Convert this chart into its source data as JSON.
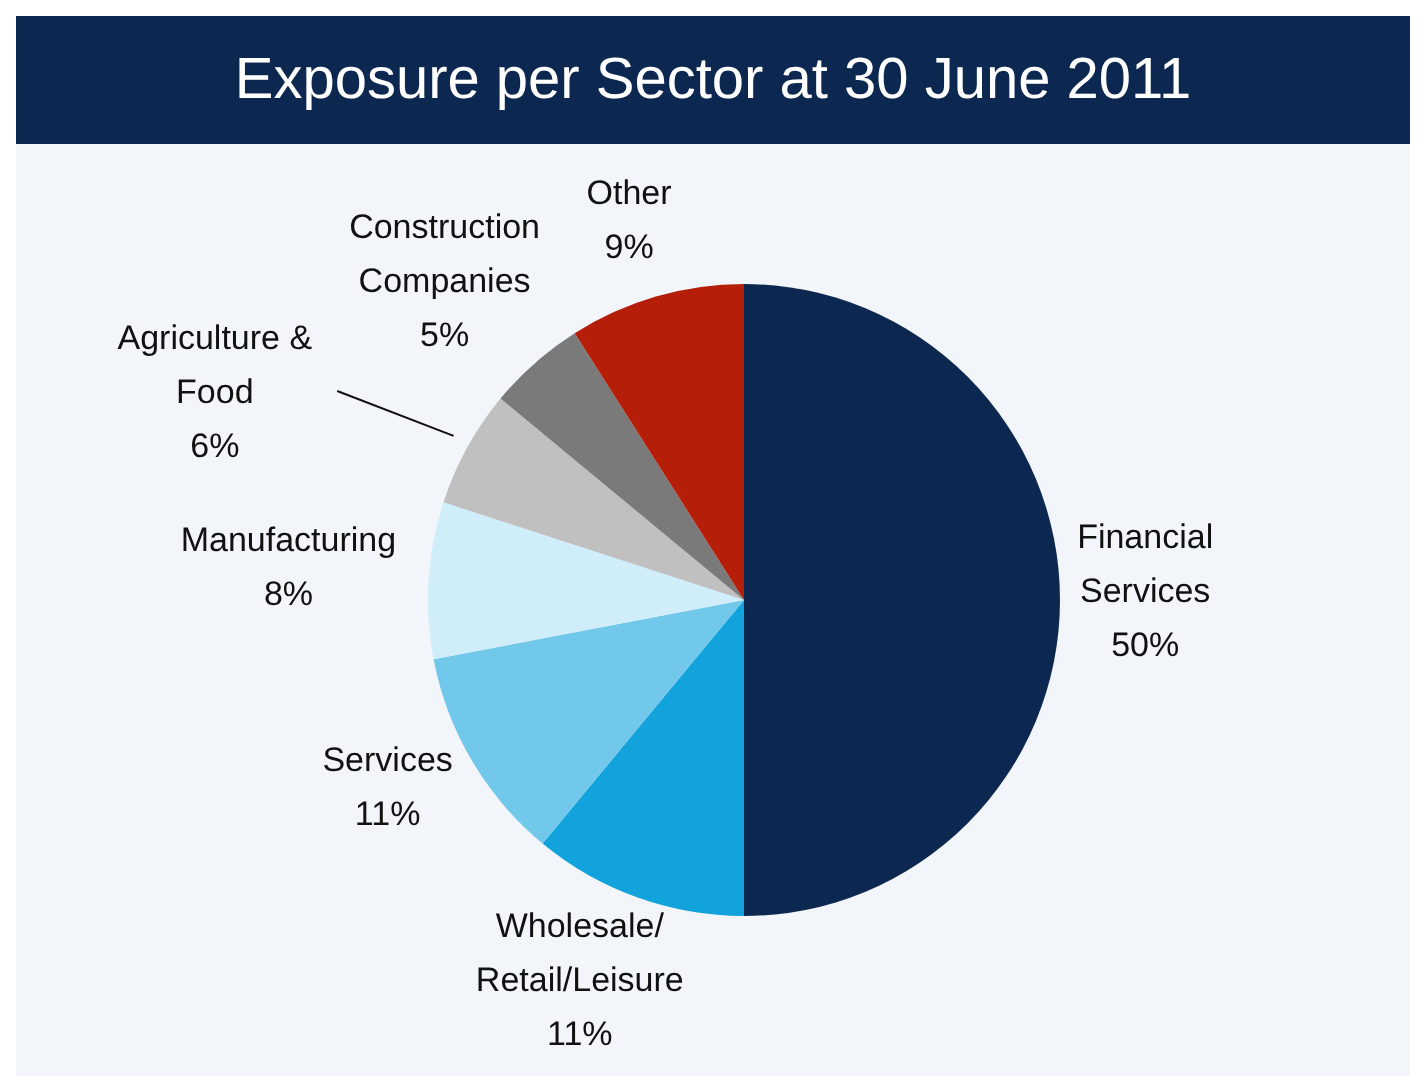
{
  "chart_data": {
    "type": "pie",
    "title": "Exposure per Sector at 30 June 2011",
    "categories": [
      "Financial Services",
      "Wholesale/Retail/Leisure",
      "Services",
      "Manufacturing",
      "Agriculture & Food",
      "Construction Companies",
      "Other"
    ],
    "values": [
      50,
      11,
      11,
      8,
      6,
      5,
      9
    ],
    "value_labels": [
      "50%",
      "11%",
      "11%",
      "8%",
      "6%",
      "5%",
      "9%"
    ],
    "colors": [
      "#0d2850",
      "#12a3dc",
      "#72c8ea",
      "#cfeefa",
      "#c0c0c0",
      "#7a7a7a",
      "#b51f0a"
    ]
  }
}
